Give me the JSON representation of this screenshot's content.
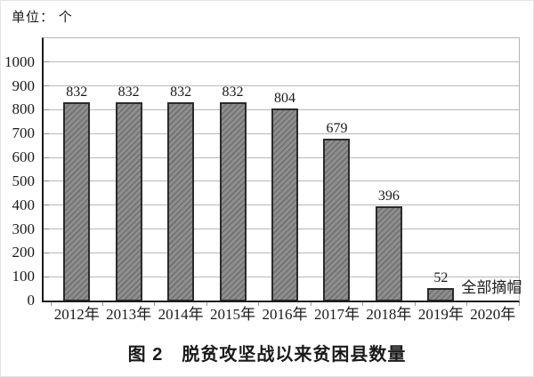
{
  "page": {
    "unit_label": "单位： 个",
    "caption": "图 2　脱贫攻坚战以来贫困县数量"
  },
  "chart_data": {
    "type": "bar",
    "title": "图 2　脱贫攻坚战以来贫困县数量",
    "unit_label": "单位： 个",
    "xlabel": "",
    "ylabel": "单位：个",
    "categories": [
      "2012年",
      "2013年",
      "2014年",
      "2015年",
      "2016年",
      "2017年",
      "2018年",
      "2019年",
      "2020年"
    ],
    "values": [
      832,
      832,
      832,
      832,
      804,
      679,
      396,
      52,
      null
    ],
    "data_labels": [
      "832",
      "832",
      "832",
      "832",
      "804",
      "679",
      "396",
      "52",
      ""
    ],
    "annotation": {
      "text": "全部摘帽",
      "category": "2019年",
      "category_index": 7
    },
    "ylim": [
      0,
      1100
    ],
    "ytick_interval": 100,
    "ytick_labels": [
      "0",
      "100",
      "200",
      "300",
      "400",
      "500",
      "600",
      "700",
      "800",
      "900",
      "1000"
    ],
    "grid": true,
    "legend": "none",
    "colors": {
      "bar_fill": "#8e8e8e",
      "bar_hatch": "#6f6f6f",
      "bar_border": "#2b2b2b",
      "gridline": "#b8b8b8",
      "axis": "#1c1c1c",
      "text": "#1a1a1a",
      "background": "#ffffff"
    }
  }
}
